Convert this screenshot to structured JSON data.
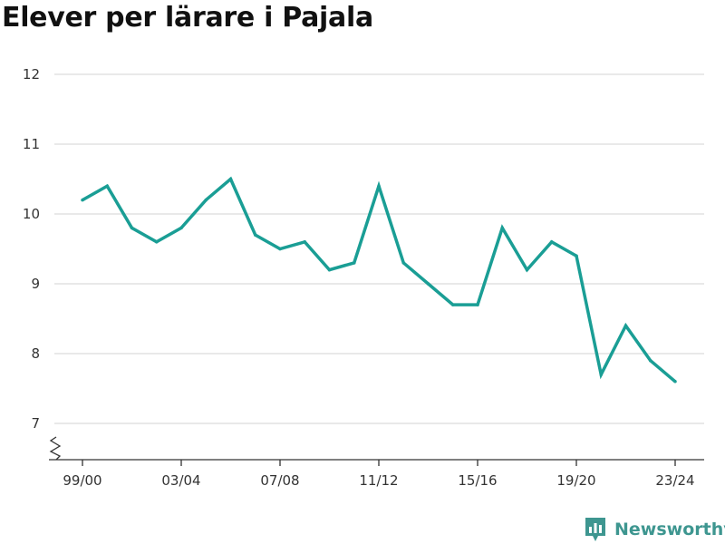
{
  "chart_data": {
    "type": "line",
    "title": "Elever per lärare i Pajala",
    "xlabel": "",
    "ylabel": "",
    "x": [
      "99/00",
      "00/01",
      "01/02",
      "02/03",
      "03/04",
      "04/05",
      "05/06",
      "06/07",
      "07/08",
      "08/09",
      "09/10",
      "10/11",
      "11/12",
      "12/13",
      "13/14",
      "14/15",
      "15/16",
      "16/17",
      "17/18",
      "18/19",
      "19/20",
      "20/21",
      "21/22",
      "22/23",
      "23/24"
    ],
    "values": [
      10.2,
      10.4,
      9.8,
      9.6,
      9.8,
      10.2,
      10.5,
      9.7,
      9.5,
      9.6,
      9.2,
      9.3,
      10.4,
      9.3,
      9.0,
      8.7,
      8.7,
      9.8,
      9.2,
      9.6,
      9.4,
      7.7,
      8.4,
      7.9,
      7.6
    ],
    "x_tick_labels": [
      "99/00",
      "03/04",
      "07/08",
      "11/12",
      "15/16",
      "19/20",
      "23/24"
    ],
    "y_ticks": [
      7,
      8,
      9,
      10,
      11,
      12
    ],
    "ylim": [
      7,
      12
    ],
    "grid": true,
    "y_axis_broken": true,
    "line_color": "#1a9e95"
  },
  "brand": {
    "name": "Newsworthy",
    "icon": "newsworthy-logo-icon",
    "color": "#3e9690"
  }
}
